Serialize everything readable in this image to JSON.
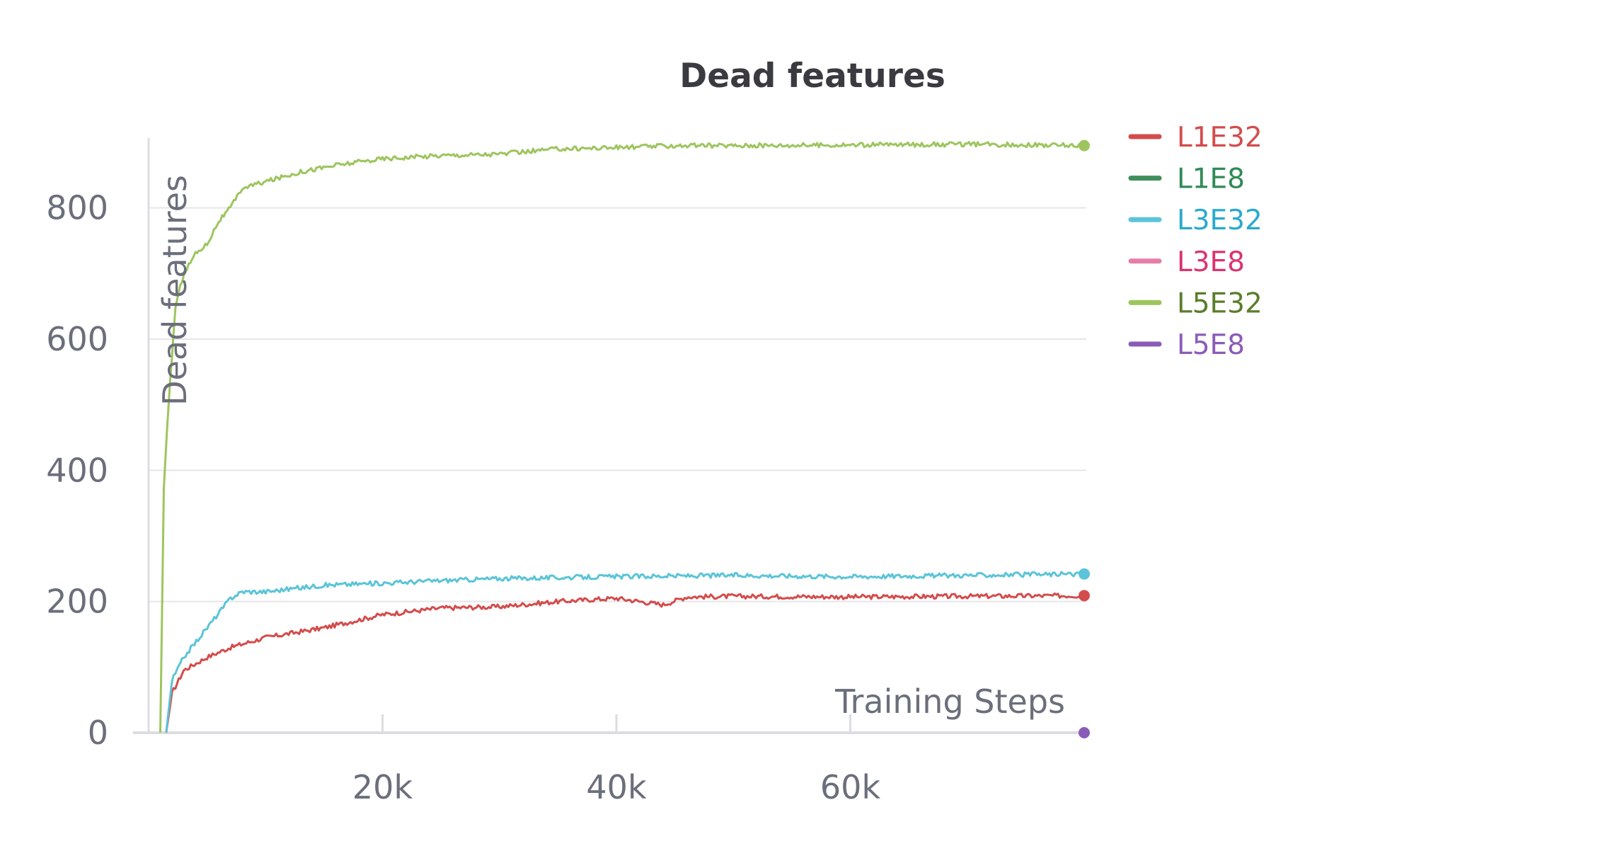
{
  "chart_data": {
    "type": "line",
    "title": "Dead features",
    "xlabel": "Training Steps",
    "ylabel": "Dead features",
    "xlim": [
      0,
      80000
    ],
    "ylim": [
      0,
      900
    ],
    "x_ticks": [
      {
        "value": 20000,
        "label": "20k"
      },
      {
        "value": 40000,
        "label": "40k"
      },
      {
        "value": 60000,
        "label": "60k"
      }
    ],
    "y_ticks": [
      {
        "value": 0,
        "label": "0"
      },
      {
        "value": 200,
        "label": "200"
      },
      {
        "value": 400,
        "label": "400"
      },
      {
        "value": 600,
        "label": "600"
      },
      {
        "value": 800,
        "label": "800"
      }
    ],
    "grid": true,
    "legend_position": "top-right",
    "series": [
      {
        "name": "L1E32",
        "color": "#d44c4c",
        "text_color": "#d44c4c",
        "x": [
          1500,
          2000,
          3000,
          5000,
          7000,
          10000,
          15000,
          20000,
          25000,
          30000,
          35000,
          40000,
          44000,
          46000,
          50000,
          60000,
          70000,
          80000
        ],
        "y": [
          0,
          60,
          95,
          115,
          130,
          145,
          160,
          180,
          190,
          192,
          200,
          205,
          195,
          207,
          208,
          207,
          208,
          209
        ]
      },
      {
        "name": "L1E8",
        "color": "#3f8f5c",
        "text_color": "#2f8a55",
        "x": [],
        "y": []
      },
      {
        "name": "L3E32",
        "color": "#5bc4d8",
        "text_color": "#29a9cf",
        "x": [
          1500,
          2000,
          3000,
          5000,
          7000,
          8000,
          10000,
          15000,
          20000,
          25000,
          30000,
          40000,
          50000,
          60000,
          70000,
          80000
        ],
        "y": [
          0,
          80,
          115,
          160,
          205,
          215,
          215,
          225,
          228,
          232,
          235,
          238,
          240,
          238,
          240,
          242
        ]
      },
      {
        "name": "L3E8",
        "color": "#e57ea6",
        "text_color": "#d9346f",
        "x": [],
        "y": []
      },
      {
        "name": "L5E32",
        "color": "#9dc55e",
        "text_color": "#5a7d2b",
        "x": [
          1000,
          1300,
          1700,
          2300,
          3000,
          4000,
          5000,
          6000,
          7000,
          8000,
          10000,
          13000,
          16000,
          20000,
          25000,
          30000,
          35000,
          40000,
          45000,
          50000,
          60000,
          70000,
          80000
        ],
        "y": [
          0,
          370,
          500,
          650,
          700,
          730,
          745,
          780,
          800,
          830,
          840,
          855,
          865,
          875,
          880,
          882,
          890,
          892,
          895,
          895,
          896,
          897,
          895
        ]
      },
      {
        "name": "L5E8",
        "color": "#8a5cb8",
        "text_color": "#8a5cb8",
        "x": [
          80000
        ],
        "y": [
          0
        ]
      }
    ]
  }
}
